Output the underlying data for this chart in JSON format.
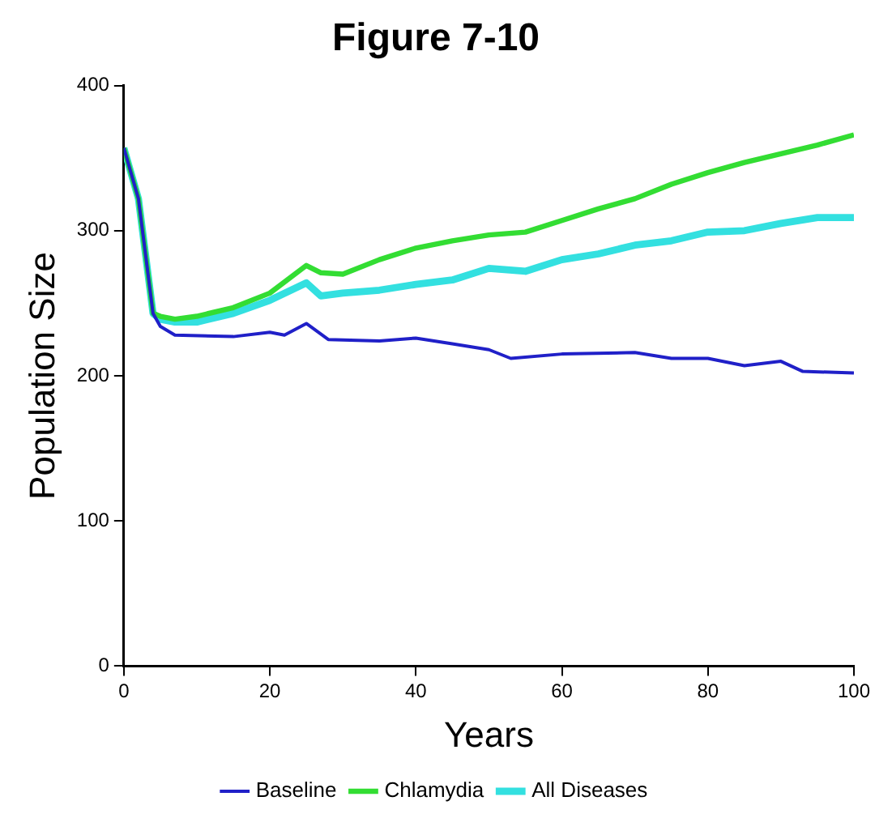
{
  "chart_data": {
    "type": "line",
    "title": "Figure 7-10",
    "xlabel": "Years",
    "ylabel": "Population Size",
    "xlim": [
      0,
      100
    ],
    "xticks": [
      0,
      20,
      40,
      60,
      80,
      100
    ],
    "ylim": [
      0,
      400
    ],
    "yticks": [
      0,
      100,
      200,
      300,
      400
    ],
    "grid": false,
    "legend": "bottom",
    "marker": "none",
    "line_style": "solid",
    "series": [
      {
        "name": "Baseline",
        "color": "#2020c8",
        "x": [
          0,
          2,
          4,
          5,
          7,
          15,
          20,
          22,
          25,
          28,
          35,
          40,
          45,
          50,
          53,
          60,
          70,
          75,
          80,
          85,
          90,
          93,
          100
        ],
        "values": [
          357,
          322,
          243,
          234,
          228,
          227,
          230,
          228,
          236,
          225,
          224,
          226,
          222,
          218,
          212,
          215,
          216,
          212,
          212,
          207,
          210,
          203,
          202
        ]
      },
      {
        "name": "Chlamydia",
        "color": "#33dd33",
        "x": [
          0,
          2,
          4,
          5,
          7,
          10,
          15,
          20,
          25,
          27,
          30,
          35,
          40,
          45,
          50,
          55,
          60,
          65,
          70,
          75,
          80,
          85,
          90,
          95,
          100
        ],
        "values": [
          357,
          322,
          243,
          241,
          239,
          241,
          247,
          257,
          276,
          271,
          270,
          280,
          288,
          293,
          297,
          299,
          307,
          315,
          322,
          332,
          340,
          347,
          353,
          359,
          366
        ]
      },
      {
        "name": "All Diseases",
        "color": "#33e0e0",
        "x": [
          0,
          2,
          4,
          5,
          7,
          10,
          15,
          20,
          25,
          27,
          30,
          35,
          40,
          45,
          50,
          55,
          60,
          65,
          70,
          75,
          80,
          85,
          90,
          95,
          100
        ],
        "values": [
          357,
          322,
          243,
          239,
          237,
          237,
          243,
          252,
          264,
          255,
          257,
          259,
          263,
          266,
          274,
          272,
          280,
          284,
          290,
          293,
          299,
          300,
          305,
          309,
          309
        ]
      }
    ]
  }
}
